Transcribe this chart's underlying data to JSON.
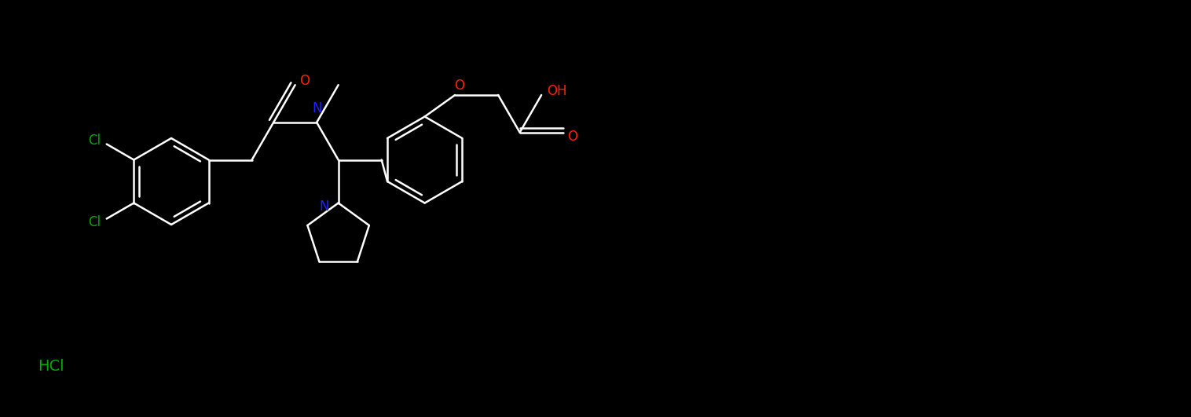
{
  "background_color": "#000000",
  "figsize": [
    15.16,
    5.31
  ],
  "dpi": 100,
  "bond_lw": 1.8,
  "font_size": 12,
  "bond_color": "#FFFFFF",
  "colors": {
    "N": "#2222FF",
    "O": "#FF2200",
    "Cl": "#00AA00",
    "HCl": "#00AA00"
  },
  "xlim": [
    0,
    1516
  ],
  "ylim": [
    0,
    531
  ]
}
